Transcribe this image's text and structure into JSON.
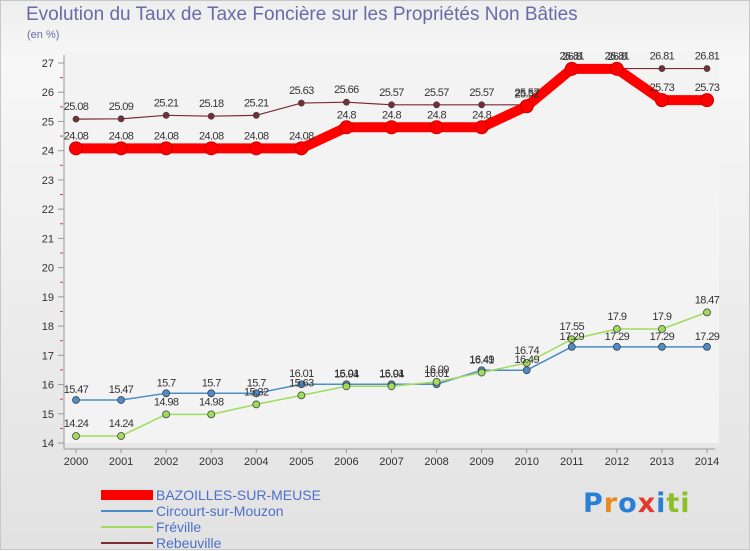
{
  "title": "Evolution du Taux de Taxe Foncière sur les Propriétés Non Bâties",
  "unit_label": "(en %)",
  "brand": [
    "P",
    "r",
    "o",
    "x",
    "i",
    "t",
    "i"
  ],
  "brand_colors": [
    "#2a7fd4",
    "#e98b1e",
    "#2a7fd4",
    "#e23a2c",
    "#2a7fd4",
    "#8cbf2a",
    "#8cbf2a"
  ],
  "chart_data": {
    "type": "line",
    "title": "Evolution du Taux de Taxe Foncière sur les Propriétés Non Bâties",
    "ylabel": "(en %)",
    "xlabel": "",
    "ylim": [
      14,
      27
    ],
    "yticks": [
      "14",
      "15",
      "16",
      "17",
      "18",
      "19",
      "20",
      "21",
      "22",
      "23",
      "24",
      "25",
      "26",
      "27"
    ],
    "categories": [
      "2000",
      "2001",
      "2002",
      "2003",
      "2004",
      "2005",
      "2006",
      "2007",
      "2008",
      "2009",
      "2010",
      "2011",
      "2012",
      "2013",
      "2014"
    ],
    "series": [
      {
        "name": "BAZOILLES-SUR-MEUSE",
        "color": "#ff0000",
        "values": [
          24.08,
          24.08,
          24.08,
          24.08,
          24.08,
          24.08,
          24.8,
          24.8,
          24.8,
          24.8,
          25.52,
          26.8,
          26.8,
          25.73,
          25.73
        ],
        "labels": [
          "24.08",
          "24.08",
          "24.08",
          "24.08",
          "24.08",
          "24.08",
          "24.8",
          "24.8",
          "24.8",
          "24.8",
          "25.52",
          "26.8",
          "26.8",
          "25.73",
          "25.73"
        ]
      },
      {
        "name": "Circourt-sur-Mouzon",
        "color": "#4c8cc8",
        "values": [
          15.47,
          15.47,
          15.7,
          15.7,
          15.7,
          16.01,
          16.01,
          16.01,
          16.01,
          16.49,
          16.49,
          17.29,
          17.29,
          17.29,
          17.29
        ],
        "labels": [
          "15.47",
          "15.47",
          "15.7",
          "15.7",
          "15.7",
          "16.01",
          "16.01",
          "16.01",
          "16.01",
          "16.49",
          "16.49",
          "17.29",
          "17.29",
          "17.29",
          "17.29"
        ]
      },
      {
        "name": "Fréville",
        "color": "#9fdc5c",
        "values": [
          14.24,
          14.24,
          14.98,
          14.98,
          15.32,
          15.63,
          15.94,
          15.94,
          16.09,
          16.41,
          16.74,
          17.55,
          17.9,
          17.9,
          18.47
        ],
        "labels": [
          "14.24",
          "14.24",
          "14.98",
          "14.98",
          "15.32",
          "15.63",
          "15.94",
          "15.94",
          "16.09",
          "16.41",
          "16.74",
          "17.55",
          "17.9",
          "17.9",
          "18.47"
        ]
      },
      {
        "name": "Rebeuville",
        "color": "#7a2c36",
        "values": [
          25.08,
          25.09,
          25.21,
          25.18,
          25.21,
          25.63,
          25.66,
          25.57,
          25.57,
          25.57,
          25.57,
          26.81,
          26.81,
          26.81,
          26.81
        ],
        "labels": [
          "25.08",
          "25.09",
          "25.21",
          "25.18",
          "25.21",
          "25.63",
          "25.66",
          "25.57",
          "25.57",
          "25.57",
          "25.57",
          "26.81",
          "26.81",
          "26.81",
          "26.81"
        ]
      }
    ]
  }
}
